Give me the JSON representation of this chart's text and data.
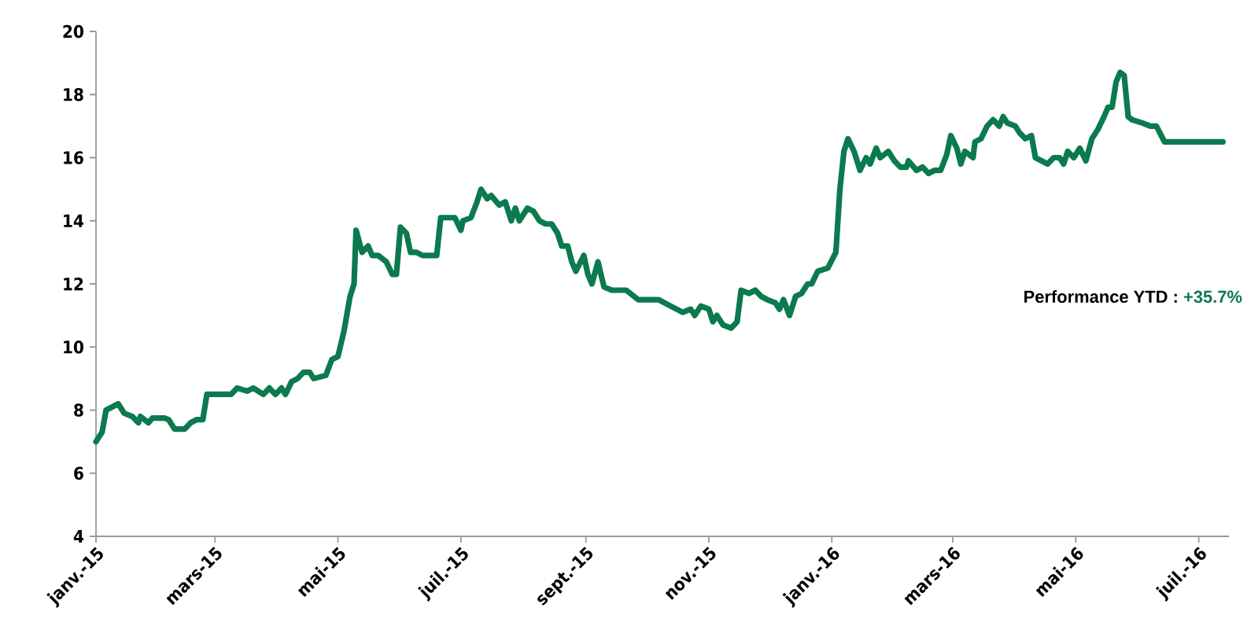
{
  "chart_data": {
    "type": "line",
    "x": [
      "2015-01-01",
      "2015-01-04",
      "2015-01-06",
      "2015-01-09",
      "2015-01-12",
      "2015-01-15",
      "2015-01-19",
      "2015-01-22",
      "2015-01-23",
      "2015-01-27",
      "2015-01-29",
      "2015-02-04",
      "2015-02-06",
      "2015-02-09",
      "2015-02-14",
      "2015-02-17",
      "2015-02-20",
      "2015-02-23",
      "2015-02-25",
      "2015-03-03",
      "2015-03-09",
      "2015-03-12",
      "2015-03-17",
      "2015-03-20",
      "2015-03-25",
      "2015-03-28",
      "2015-03-31",
      "2015-04-03",
      "2015-04-05",
      "2015-04-08",
      "2015-04-11",
      "2015-04-14",
      "2015-04-17",
      "2015-04-19",
      "2015-04-25",
      "2015-04-28",
      "2015-05-01",
      "2015-05-04",
      "2015-05-07",
      "2015-05-09",
      "2015-05-10",
      "2015-05-13",
      "2015-05-16",
      "2015-05-18",
      "2015-05-21",
      "2015-05-25",
      "2015-05-28",
      "2015-05-30",
      "2015-06-01",
      "2015-06-04",
      "2015-06-06",
      "2015-06-09",
      "2015-06-12",
      "2015-06-19",
      "2015-06-21",
      "2015-06-28",
      "2015-07-01",
      "2015-07-02",
      "2015-07-06",
      "2015-07-09",
      "2015-07-11",
      "2015-07-14",
      "2015-07-16",
      "2015-07-20",
      "2015-07-23",
      "2015-07-26",
      "2015-07-28",
      "2015-07-30",
      "2015-08-03",
      "2015-08-06",
      "2015-08-09",
      "2015-08-12",
      "2015-08-15",
      "2015-08-18",
      "2015-08-20",
      "2015-08-23",
      "2015-08-25",
      "2015-08-27",
      "2015-08-31",
      "2015-09-02",
      "2015-09-04",
      "2015-09-07",
      "2015-09-10",
      "2015-09-14",
      "2015-09-21",
      "2015-09-27",
      "2015-10-07",
      "2015-10-13",
      "2015-10-19",
      "2015-10-23",
      "2015-10-25",
      "2015-10-28",
      "2015-11-01",
      "2015-11-03",
      "2015-11-05",
      "2015-11-08",
      "2015-11-12",
      "2015-11-15",
      "2015-11-17",
      "2015-11-21",
      "2015-11-24",
      "2015-11-27",
      "2015-11-30",
      "2015-12-04",
      "2015-12-06",
      "2015-12-08",
      "2015-12-11",
      "2015-12-14",
      "2015-12-17",
      "2015-12-20",
      "2015-12-22",
      "2015-12-25",
      "2015-12-30",
      "2016-01-03",
      "2016-01-05",
      "2016-01-07",
      "2016-01-09",
      "2016-01-12",
      "2016-01-15",
      "2016-01-18",
      "2016-01-20",
      "2016-01-23",
      "2016-01-25",
      "2016-01-29",
      "2016-02-01",
      "2016-02-04",
      "2016-02-07",
      "2016-02-08",
      "2016-02-12",
      "2016-02-15",
      "2016-02-18",
      "2016-02-21",
      "2016-02-24",
      "2016-02-27",
      "2016-02-29",
      "2016-03-03",
      "2016-03-05",
      "2016-03-07",
      "2016-03-11",
      "2016-03-12",
      "2016-03-15",
      "2016-03-18",
      "2016-03-21",
      "2016-03-24",
      "2016-03-26",
      "2016-03-28",
      "2016-04-01",
      "2016-04-03",
      "2016-04-06",
      "2016-04-09",
      "2016-04-11",
      "2016-04-14",
      "2016-04-17",
      "2016-04-20",
      "2016-04-23",
      "2016-04-25",
      "2016-04-27",
      "2016-04-30",
      "2016-05-03",
      "2016-05-06",
      "2016-05-09",
      "2016-05-12",
      "2016-05-15",
      "2016-05-17",
      "2016-05-19",
      "2016-05-21",
      "2016-05-23",
      "2016-05-25",
      "2016-05-27",
      "2016-05-29",
      "2016-06-03",
      "2016-06-07",
      "2016-06-10",
      "2016-06-14",
      "2016-06-28",
      "2016-07-13"
    ],
    "series": [
      {
        "color": "#0b7a4e",
        "values": [
          7.0,
          7.3,
          8.0,
          8.1,
          8.2,
          7.9,
          7.8,
          7.6,
          7.8,
          7.6,
          7.75,
          7.75,
          7.7,
          7.4,
          7.4,
          7.6,
          7.7,
          7.7,
          8.5,
          8.5,
          8.5,
          8.7,
          8.6,
          8.7,
          8.5,
          8.7,
          8.5,
          8.7,
          8.5,
          8.9,
          9.0,
          9.2,
          9.2,
          9.0,
          9.1,
          9.6,
          9.7,
          10.5,
          11.6,
          12.0,
          13.7,
          13.0,
          13.2,
          12.9,
          12.9,
          12.7,
          12.3,
          12.3,
          13.8,
          13.6,
          13.0,
          13.0,
          12.9,
          12.9,
          14.1,
          14.1,
          13.7,
          14.0,
          14.1,
          14.6,
          15.0,
          14.7,
          14.8,
          14.5,
          14.6,
          14.0,
          14.4,
          14.0,
          14.4,
          14.3,
          14.0,
          13.9,
          13.9,
          13.6,
          13.2,
          13.2,
          12.7,
          12.4,
          12.9,
          12.3,
          12.0,
          12.7,
          11.9,
          11.8,
          11.8,
          11.5,
          11.5,
          11.3,
          11.1,
          11.2,
          11.0,
          11.3,
          11.2,
          10.8,
          11.0,
          10.7,
          10.6,
          10.8,
          11.8,
          11.7,
          11.8,
          11.6,
          11.5,
          11.4,
          11.2,
          11.5,
          11.0,
          11.6,
          11.7,
          12.0,
          12.0,
          12.4,
          12.5,
          13.0,
          15.0,
          16.2,
          16.6,
          16.2,
          15.6,
          16.0,
          15.8,
          16.3,
          16.0,
          16.2,
          15.9,
          15.7,
          15.7,
          15.9,
          15.6,
          15.7,
          15.5,
          15.6,
          15.6,
          16.1,
          16.7,
          16.3,
          15.8,
          16.2,
          16.0,
          16.5,
          16.6,
          17.0,
          17.2,
          17.0,
          17.3,
          17.1,
          17.0,
          16.8,
          16.6,
          16.7,
          16.0,
          15.9,
          15.8,
          16.0,
          16.0,
          15.8,
          16.2,
          16.0,
          16.3,
          15.9,
          16.6,
          16.9,
          17.3,
          17.6,
          17.6,
          18.4,
          18.7,
          18.6,
          17.3,
          17.2,
          17.1,
          17.0,
          17.0,
          16.5,
          16.5,
          16.5
        ]
      }
    ],
    "xlim": [
      "2015-01-01",
      "2016-07-16"
    ],
    "xticks": [
      {
        "value": "2015-01-01",
        "label": "janv.-15"
      },
      {
        "value": "2015-03-01",
        "label": "mars-15"
      },
      {
        "value": "2015-05-01",
        "label": "mai-15"
      },
      {
        "value": "2015-07-01",
        "label": "juil.-15"
      },
      {
        "value": "2015-09-01",
        "label": "sept.-15"
      },
      {
        "value": "2015-11-01",
        "label": "nov.-15"
      },
      {
        "value": "2016-01-01",
        "label": "janv.-16"
      },
      {
        "value": "2016-03-01",
        "label": "mars-16"
      },
      {
        "value": "2016-05-01",
        "label": "mai-16"
      },
      {
        "value": "2016-07-01",
        "label": "juil.-16"
      }
    ],
    "ylim": [
      4,
      20
    ],
    "yticks": [
      4,
      6,
      8,
      10,
      12,
      14,
      16,
      18,
      20
    ],
    "annotations": [
      "Performance YTD :",
      "+35.7%"
    ],
    "grid": false,
    "marker": "none",
    "line_style": "solid"
  }
}
